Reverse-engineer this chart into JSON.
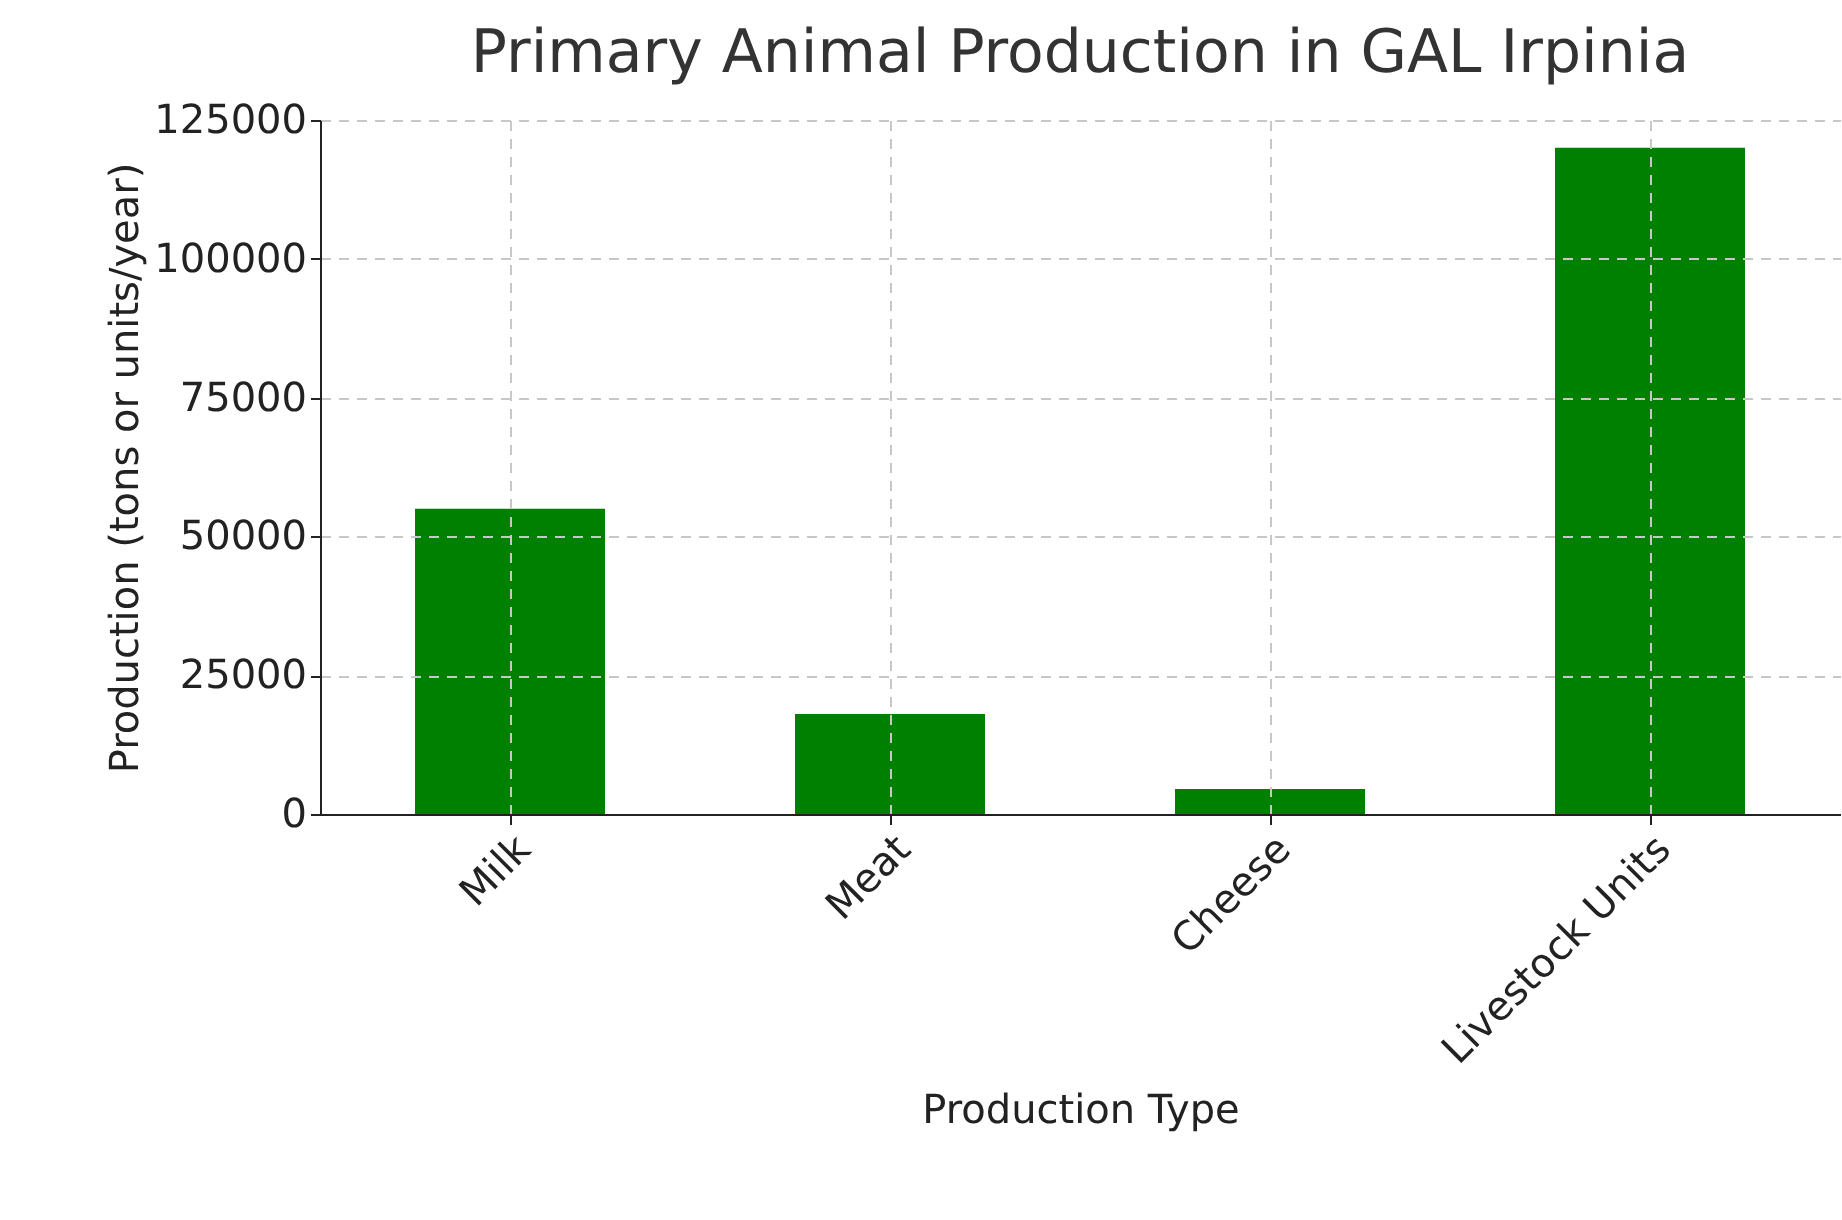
{
  "chart_data": {
    "type": "bar",
    "title": "Primary Animal Production in GAL Irpinia",
    "xlabel": "Production Type",
    "ylabel": "Production (tons or units/year)",
    "categories": [
      "Milk",
      "Meat",
      "Cheese",
      "Livestock Units"
    ],
    "values": [
      55000,
      18000,
      4500,
      120000
    ],
    "color": "#008000",
    "ylim": [
      0,
      125000
    ],
    "yticks": [
      0,
      25000,
      50000,
      75000,
      100000,
      125000
    ],
    "grid": true
  }
}
